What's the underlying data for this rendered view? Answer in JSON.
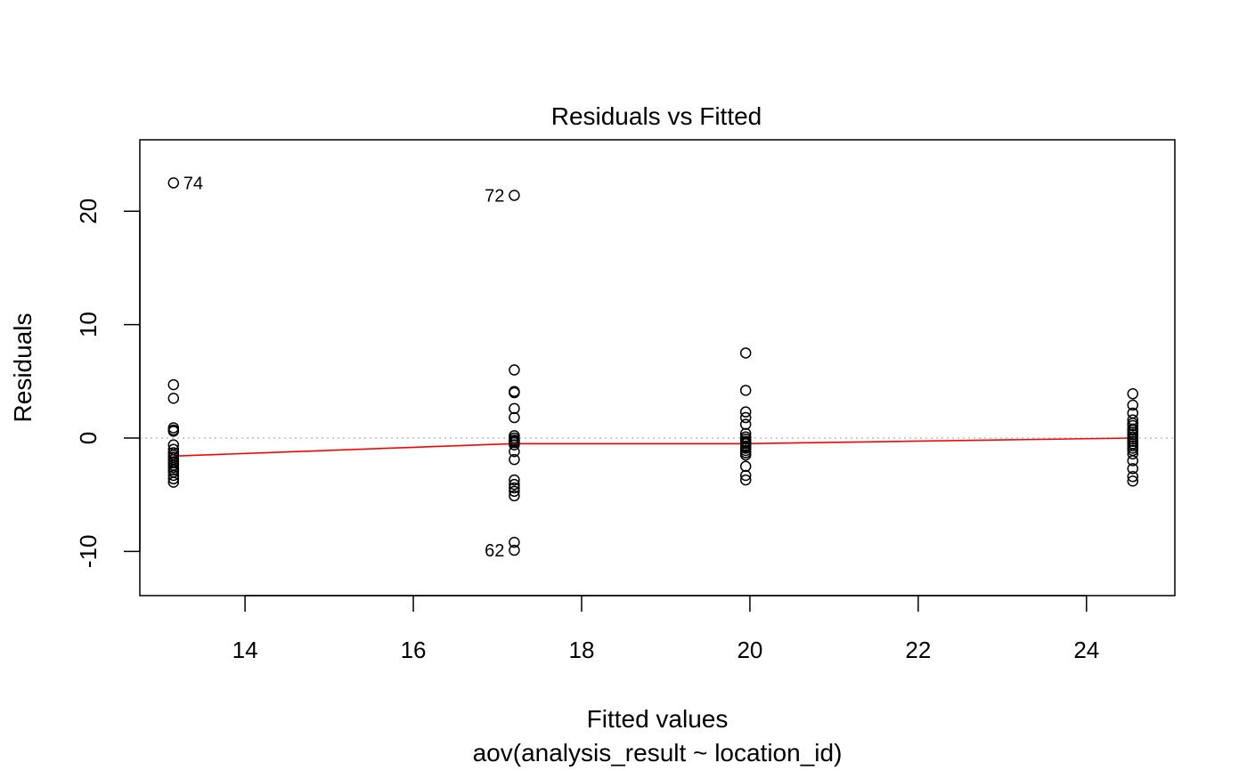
{
  "chart_data": {
    "type": "scatter",
    "title": "Residuals vs Fitted",
    "xlabel": "Fitted values",
    "xlabel_sub": "aov(analysis_result ~ location_id)",
    "ylabel": "Residuals",
    "xlim": [
      12.75,
      25.05
    ],
    "ylim": [
      -13.9,
      26.3
    ],
    "xticks": [
      14,
      16,
      18,
      20,
      22,
      24
    ],
    "xtick_labels": [
      "14",
      "16",
      "18",
      "20",
      "22",
      "24"
    ],
    "yticks": [
      -10,
      0,
      10,
      20
    ],
    "ytick_labels": [
      "-10",
      "0",
      "10",
      "20"
    ],
    "grid": false,
    "reference_line": {
      "y": 0,
      "style": "dotted",
      "color": "#bebebe"
    },
    "series": [
      {
        "x": [
          13.15,
          13.15,
          13.15,
          13.15,
          13.15,
          13.15,
          13.15,
          13.15,
          13.15,
          13.15,
          13.15,
          13.15,
          13.15,
          13.15,
          13.15,
          13.15,
          13.15,
          13.15,
          13.15,
          13.15,
          13.15,
          17.2,
          17.2,
          17.2,
          17.2,
          17.2,
          17.2,
          17.2,
          17.2,
          17.2,
          17.2,
          17.2,
          17.2,
          17.2,
          17.2,
          17.2,
          17.2,
          17.2,
          17.2,
          17.2,
          17.2,
          17.2,
          17.2,
          19.95,
          19.95,
          19.95,
          19.95,
          19.95,
          19.95,
          19.95,
          19.95,
          19.95,
          19.95,
          19.95,
          19.95,
          19.95,
          19.95,
          19.95,
          19.95,
          19.95,
          19.95,
          19.95,
          19.95,
          24.55,
          24.55,
          24.55,
          24.55,
          24.55,
          24.55,
          24.55,
          24.55,
          24.55,
          24.55,
          24.55,
          24.55,
          24.55,
          24.55,
          24.55,
          24.55,
          24.55,
          24.55,
          24.55,
          24.55,
          24.55,
          24.55
        ],
        "y": [
          22.5,
          4.7,
          3.5,
          0.9,
          0.7,
          0.6,
          -0.6,
          -1.0,
          -1.3,
          -1.5,
          -1.7,
          -1.9,
          -2.1,
          -2.2,
          -2.4,
          -2.6,
          -2.8,
          -3.0,
          -3.3,
          -3.6,
          -3.9,
          21.4,
          6.0,
          4.1,
          4.0,
          2.6,
          1.8,
          0.2,
          0.0,
          -0.2,
          -0.4,
          -0.6,
          -1.2,
          -1.9,
          -3.7,
          -4.1,
          -4.4,
          -4.7,
          -5.1,
          -9.2,
          -9.9,
          -0.2,
          -0.3,
          7.5,
          4.2,
          2.3,
          1.8,
          1.2,
          0.4,
          0.1,
          -0.1,
          -0.3,
          -0.5,
          -0.7,
          -0.9,
          -1.1,
          -1.3,
          -1.5,
          -2.5,
          -3.3,
          -3.7,
          -0.4,
          -0.8,
          3.9,
          2.9,
          2.2,
          1.6,
          1.1,
          0.8,
          0.5,
          0.3,
          0.1,
          -0.1,
          -0.3,
          -0.5,
          -0.7,
          -0.9,
          -1.1,
          -1.4,
          -2.0,
          -2.7,
          -3.4,
          -3.8,
          1.3,
          0.7
        ]
      }
    ],
    "smoother": {
      "color": "#ff0000",
      "x": [
        13.15,
        17.2,
        19.95,
        24.55
      ],
      "y": [
        -1.6,
        -0.5,
        -0.5,
        0.0
      ]
    },
    "point_labels": [
      {
        "text": "74",
        "x": 13.15,
        "y": 22.5,
        "side": "right"
      },
      {
        "text": "72",
        "x": 17.2,
        "y": 21.4,
        "side": "left"
      },
      {
        "text": "62",
        "x": 17.2,
        "y": -9.9,
        "side": "left"
      }
    ]
  }
}
